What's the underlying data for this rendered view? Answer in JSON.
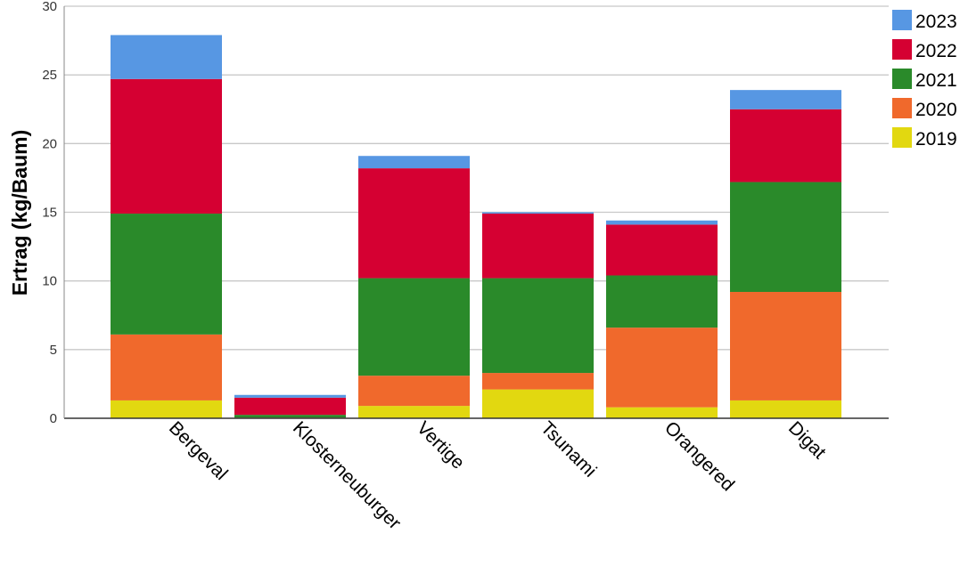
{
  "chart_data": {
    "type": "bar",
    "stacked": true,
    "title": "",
    "xlabel": "",
    "ylabel": "Ertrag (kg/Baum)",
    "ylim": [
      0,
      30
    ],
    "yticks": [
      0,
      5,
      10,
      15,
      20,
      25,
      30
    ],
    "grid": true,
    "legend_position": "top-right",
    "categories": [
      "Bergeval",
      "Klosterneuburger",
      "Vertige",
      "Tsunami",
      "Orangered",
      "Digat"
    ],
    "series": [
      {
        "name": "2019",
        "color": "#e2d810",
        "values": [
          1.3,
          0.0,
          0.9,
          2.1,
          0.8,
          1.3
        ]
      },
      {
        "name": "2020",
        "color": "#f0692c",
        "values": [
          4.8,
          0.05,
          2.2,
          1.2,
          5.8,
          7.9
        ]
      },
      {
        "name": "2021",
        "color": "#2a8a2a",
        "values": [
          8.8,
          0.2,
          7.1,
          6.9,
          3.8,
          8.0
        ]
      },
      {
        "name": "2022",
        "color": "#d50032",
        "values": [
          9.8,
          1.25,
          8.0,
          4.7,
          3.7,
          5.3
        ]
      },
      {
        "name": "2023",
        "color": "#5797e3",
        "values": [
          3.2,
          0.2,
          0.9,
          0.1,
          0.3,
          1.4
        ]
      }
    ],
    "legend_order": [
      "2023",
      "2022",
      "2021",
      "2020",
      "2019"
    ]
  }
}
